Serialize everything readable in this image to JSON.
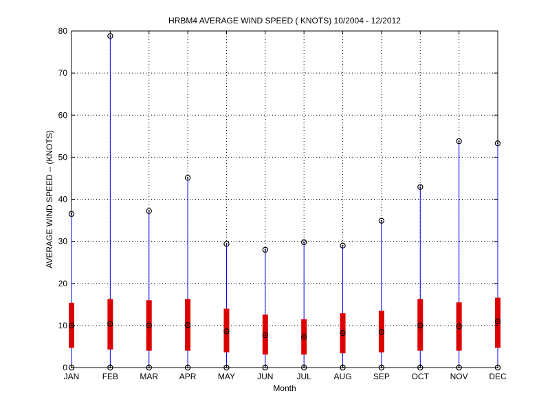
{
  "chart_data": {
    "type": "boxplot",
    "title": "HRBM4  AVERAGE WIND SPEED ( KNOTS) 10/2004 - 12/2012",
    "xlabel": "Month",
    "ylabel": "AVERAGE WIND SPEED -- (KNOTS)",
    "ylim": [
      0,
      80
    ],
    "yticks": [
      0,
      10,
      20,
      30,
      40,
      50,
      60,
      70,
      80
    ],
    "grid": true,
    "categories": [
      "JAN",
      "FEB",
      "MAR",
      "APR",
      "MAY",
      "JUN",
      "JUL",
      "AUG",
      "SEP",
      "OCT",
      "NOV",
      "DEC"
    ],
    "series": [
      {
        "min": [
          0,
          0,
          0,
          0,
          0,
          0,
          0,
          0,
          0,
          0,
          0,
          0
        ],
        "q1": [
          4.7,
          4.3,
          4.0,
          4.0,
          3.6,
          3.1,
          3.1,
          3.4,
          3.6,
          4.0,
          4.0,
          4.7
        ],
        "median": [
          10.0,
          10.4,
          10.0,
          10.1,
          8.6,
          7.7,
          7.3,
          8.2,
          8.5,
          10.0,
          9.8,
          11.0
        ],
        "q3": [
          15.4,
          16.3,
          16.0,
          16.3,
          14.0,
          12.6,
          11.5,
          12.9,
          13.5,
          16.3,
          15.5,
          16.6
        ],
        "max": [
          36.5,
          78.8,
          37.2,
          45.1,
          29.4,
          28.0,
          29.8,
          29.0,
          34.9,
          42.9,
          53.8,
          53.3
        ]
      }
    ],
    "colors": {
      "whisker": "#0000ff",
      "box": "#dd0000",
      "marker": "#000000",
      "grid": "#000000",
      "axis": "#000000"
    }
  }
}
